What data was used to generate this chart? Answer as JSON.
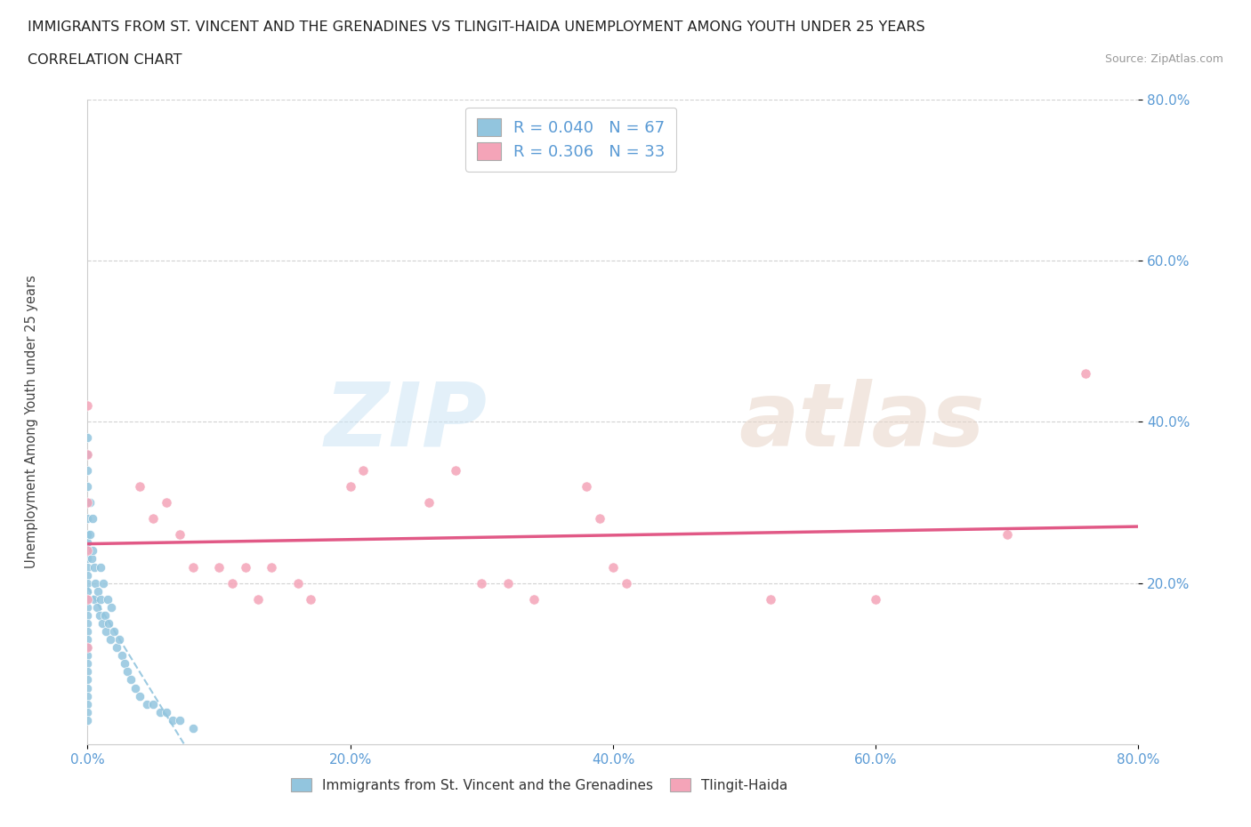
{
  "title_line1": "IMMIGRANTS FROM ST. VINCENT AND THE GRENADINES VS TLINGIT-HAIDA UNEMPLOYMENT AMONG YOUTH UNDER 25 YEARS",
  "title_line2": "CORRELATION CHART",
  "source_text": "Source: ZipAtlas.com",
  "ylabel": "Unemployment Among Youth under 25 years",
  "xlim": [
    0.0,
    0.8
  ],
  "ylim": [
    0.0,
    0.8
  ],
  "xtick_labels": [
    "0.0%",
    "",
    "20.0%",
    "",
    "40.0%",
    "",
    "60.0%",
    "",
    "80.0%"
  ],
  "xtick_positions": [
    0.0,
    0.1,
    0.2,
    0.3,
    0.4,
    0.5,
    0.6,
    0.7,
    0.8
  ],
  "ytick_labels": [
    "20.0%",
    "40.0%",
    "60.0%",
    "80.0%"
  ],
  "ytick_positions": [
    0.2,
    0.4,
    0.6,
    0.8
  ],
  "blue_R": 0.04,
  "blue_N": 67,
  "pink_R": 0.306,
  "pink_N": 33,
  "blue_color": "#92c5de",
  "pink_color": "#f4a4b8",
  "blue_line_color": "#92c5de",
  "pink_line_color": "#e05080",
  "blue_scatter_x": [
    0.0,
    0.0,
    0.0,
    0.0,
    0.0,
    0.0,
    0.0,
    0.0,
    0.0,
    0.0,
    0.0,
    0.0,
    0.0,
    0.0,
    0.0,
    0.0,
    0.0,
    0.0,
    0.0,
    0.0,
    0.0,
    0.0,
    0.0,
    0.0,
    0.0,
    0.0,
    0.0,
    0.0,
    0.0,
    0.0,
    0.002,
    0.002,
    0.003,
    0.004,
    0.004,
    0.005,
    0.005,
    0.006,
    0.007,
    0.008,
    0.009,
    0.01,
    0.01,
    0.011,
    0.012,
    0.013,
    0.014,
    0.015,
    0.016,
    0.017,
    0.018,
    0.02,
    0.022,
    0.024,
    0.026,
    0.028,
    0.03,
    0.033,
    0.036,
    0.04,
    0.045,
    0.05,
    0.055,
    0.06,
    0.065,
    0.07,
    0.08
  ],
  "blue_scatter_y": [
    0.38,
    0.36,
    0.34,
    0.32,
    0.3,
    0.28,
    0.26,
    0.25,
    0.24,
    0.23,
    0.22,
    0.21,
    0.2,
    0.19,
    0.18,
    0.17,
    0.16,
    0.15,
    0.14,
    0.13,
    0.12,
    0.11,
    0.1,
    0.09,
    0.08,
    0.07,
    0.06,
    0.05,
    0.04,
    0.03,
    0.3,
    0.26,
    0.23,
    0.28,
    0.24,
    0.22,
    0.18,
    0.2,
    0.17,
    0.19,
    0.16,
    0.22,
    0.18,
    0.15,
    0.2,
    0.16,
    0.14,
    0.18,
    0.15,
    0.13,
    0.17,
    0.14,
    0.12,
    0.13,
    0.11,
    0.1,
    0.09,
    0.08,
    0.07,
    0.06,
    0.05,
    0.05,
    0.04,
    0.04,
    0.03,
    0.03,
    0.02
  ],
  "pink_scatter_x": [
    0.0,
    0.0,
    0.0,
    0.0,
    0.0,
    0.0,
    0.04,
    0.05,
    0.06,
    0.07,
    0.08,
    0.1,
    0.11,
    0.12,
    0.13,
    0.14,
    0.16,
    0.17,
    0.2,
    0.21,
    0.26,
    0.28,
    0.3,
    0.32,
    0.34,
    0.38,
    0.39,
    0.4,
    0.41,
    0.52,
    0.6,
    0.7,
    0.76
  ],
  "pink_scatter_y": [
    0.42,
    0.36,
    0.3,
    0.24,
    0.18,
    0.12,
    0.32,
    0.28,
    0.3,
    0.26,
    0.22,
    0.22,
    0.2,
    0.22,
    0.18,
    0.22,
    0.2,
    0.18,
    0.32,
    0.34,
    0.3,
    0.34,
    0.2,
    0.2,
    0.18,
    0.32,
    0.28,
    0.22,
    0.2,
    0.18,
    0.18,
    0.26,
    0.46
  ],
  "background_color": "#ffffff",
  "grid_color": "#cccccc"
}
